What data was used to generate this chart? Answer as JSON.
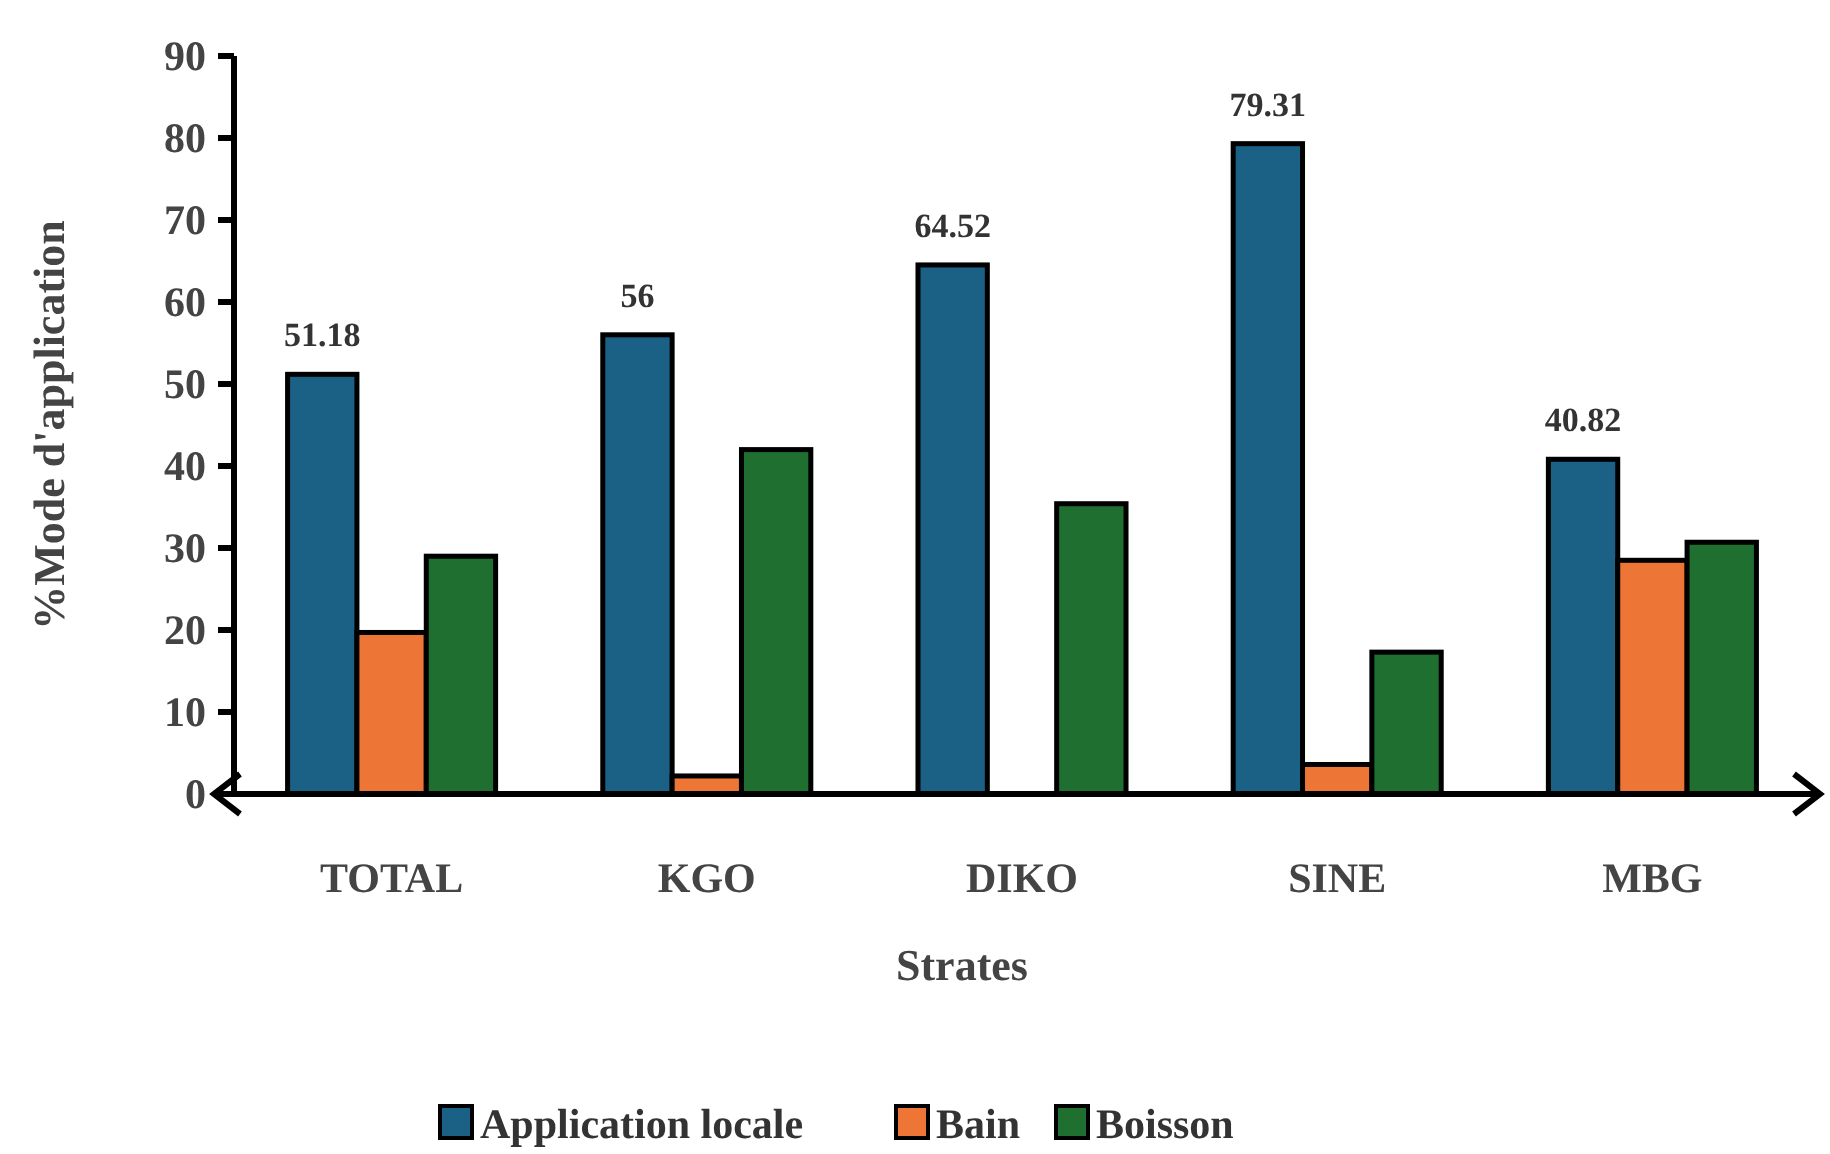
{
  "chart_data": {
    "type": "bar",
    "xlabel": "Strates",
    "ylabel": "%Mode d'application",
    "categories": [
      "TOTAL",
      "KGO",
      "DIKO",
      "SINE",
      "MBG"
    ],
    "series": [
      {
        "name": "Application locale",
        "color": "#1a6185",
        "values": [
          51.18,
          56,
          64.52,
          79.31,
          40.82
        ],
        "value_labels": [
          "51.18",
          "56",
          "64.52",
          "79.31",
          "40.82"
        ]
      },
      {
        "name": "Bain",
        "color": "#ed7535",
        "values": [
          19.7,
          2.2,
          0,
          3.6,
          28.5
        ]
      },
      {
        "name": "Boisson",
        "color": "#1f7030",
        "values": [
          29,
          42,
          35.4,
          17.3,
          30.7
        ]
      }
    ],
    "ylim": [
      0,
      90
    ],
    "yticks": [
      0,
      10,
      20,
      30,
      40,
      50,
      60,
      70,
      80,
      90
    ],
    "grid": false,
    "legend": "bottom"
  }
}
